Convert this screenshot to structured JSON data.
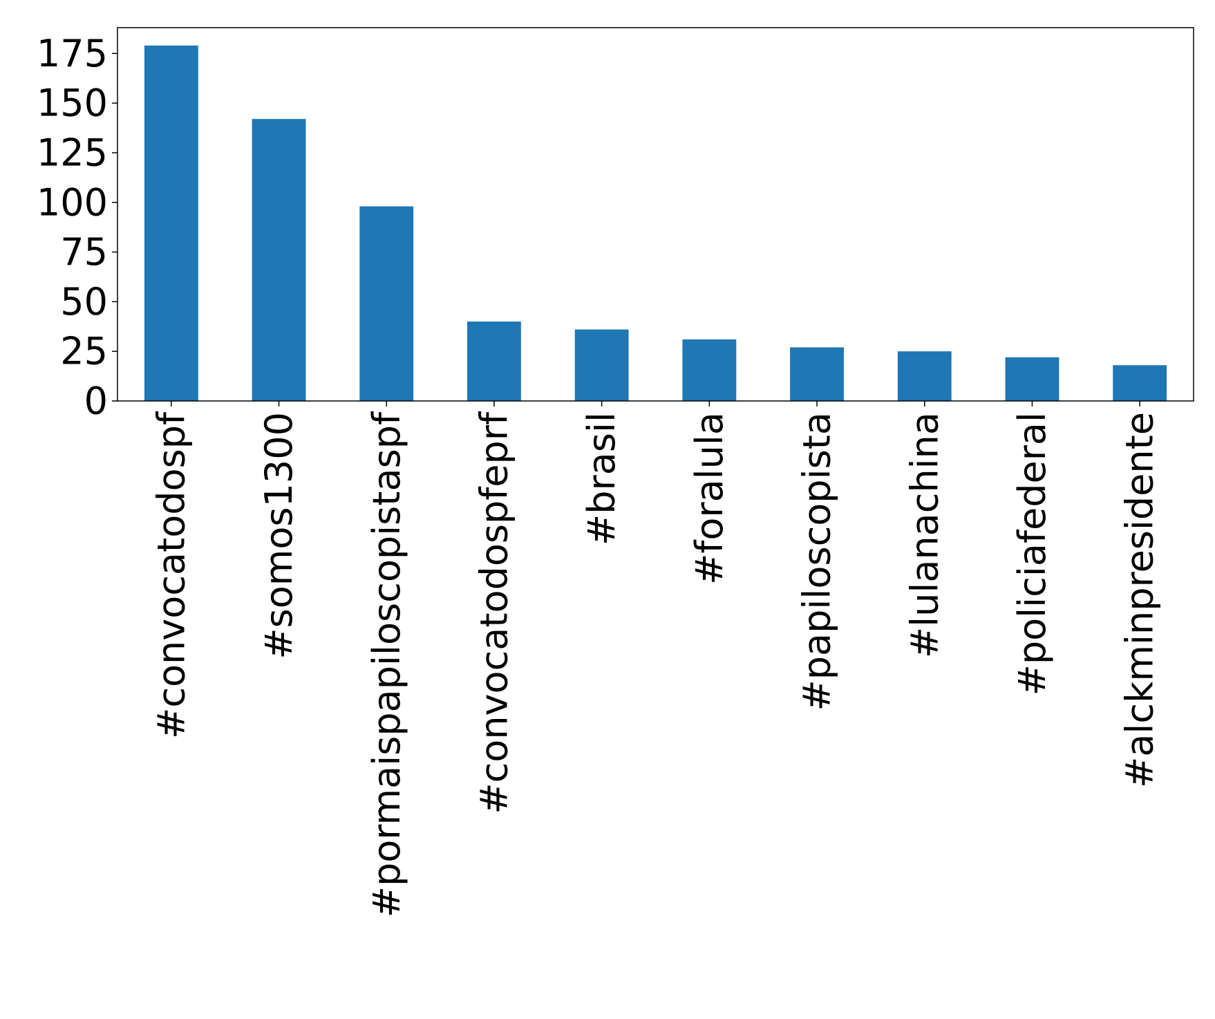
{
  "chart_data": {
    "type": "bar",
    "title": "",
    "xlabel": "",
    "ylabel": "",
    "categories": [
      "#convocatodospf",
      "#somos1300",
      "#pormaispapiloscopistaspf",
      "#convocatodospfeprf",
      "#brasil",
      "#foralula",
      "#papiloscopista",
      "#lulanachina",
      "#policiafederal",
      "#alckminpresidente"
    ],
    "values": [
      179,
      142,
      98,
      40,
      36,
      31,
      27,
      25,
      22,
      18
    ],
    "ylim": [
      0,
      188
    ],
    "yticks": [
      0,
      25,
      50,
      75,
      100,
      125,
      150,
      175
    ],
    "ytick_labels": [
      "0",
      "25",
      "50",
      "75",
      "100",
      "125",
      "150",
      "175"
    ],
    "bar_color": "#1f77b4",
    "grid": false,
    "legend": "none"
  }
}
